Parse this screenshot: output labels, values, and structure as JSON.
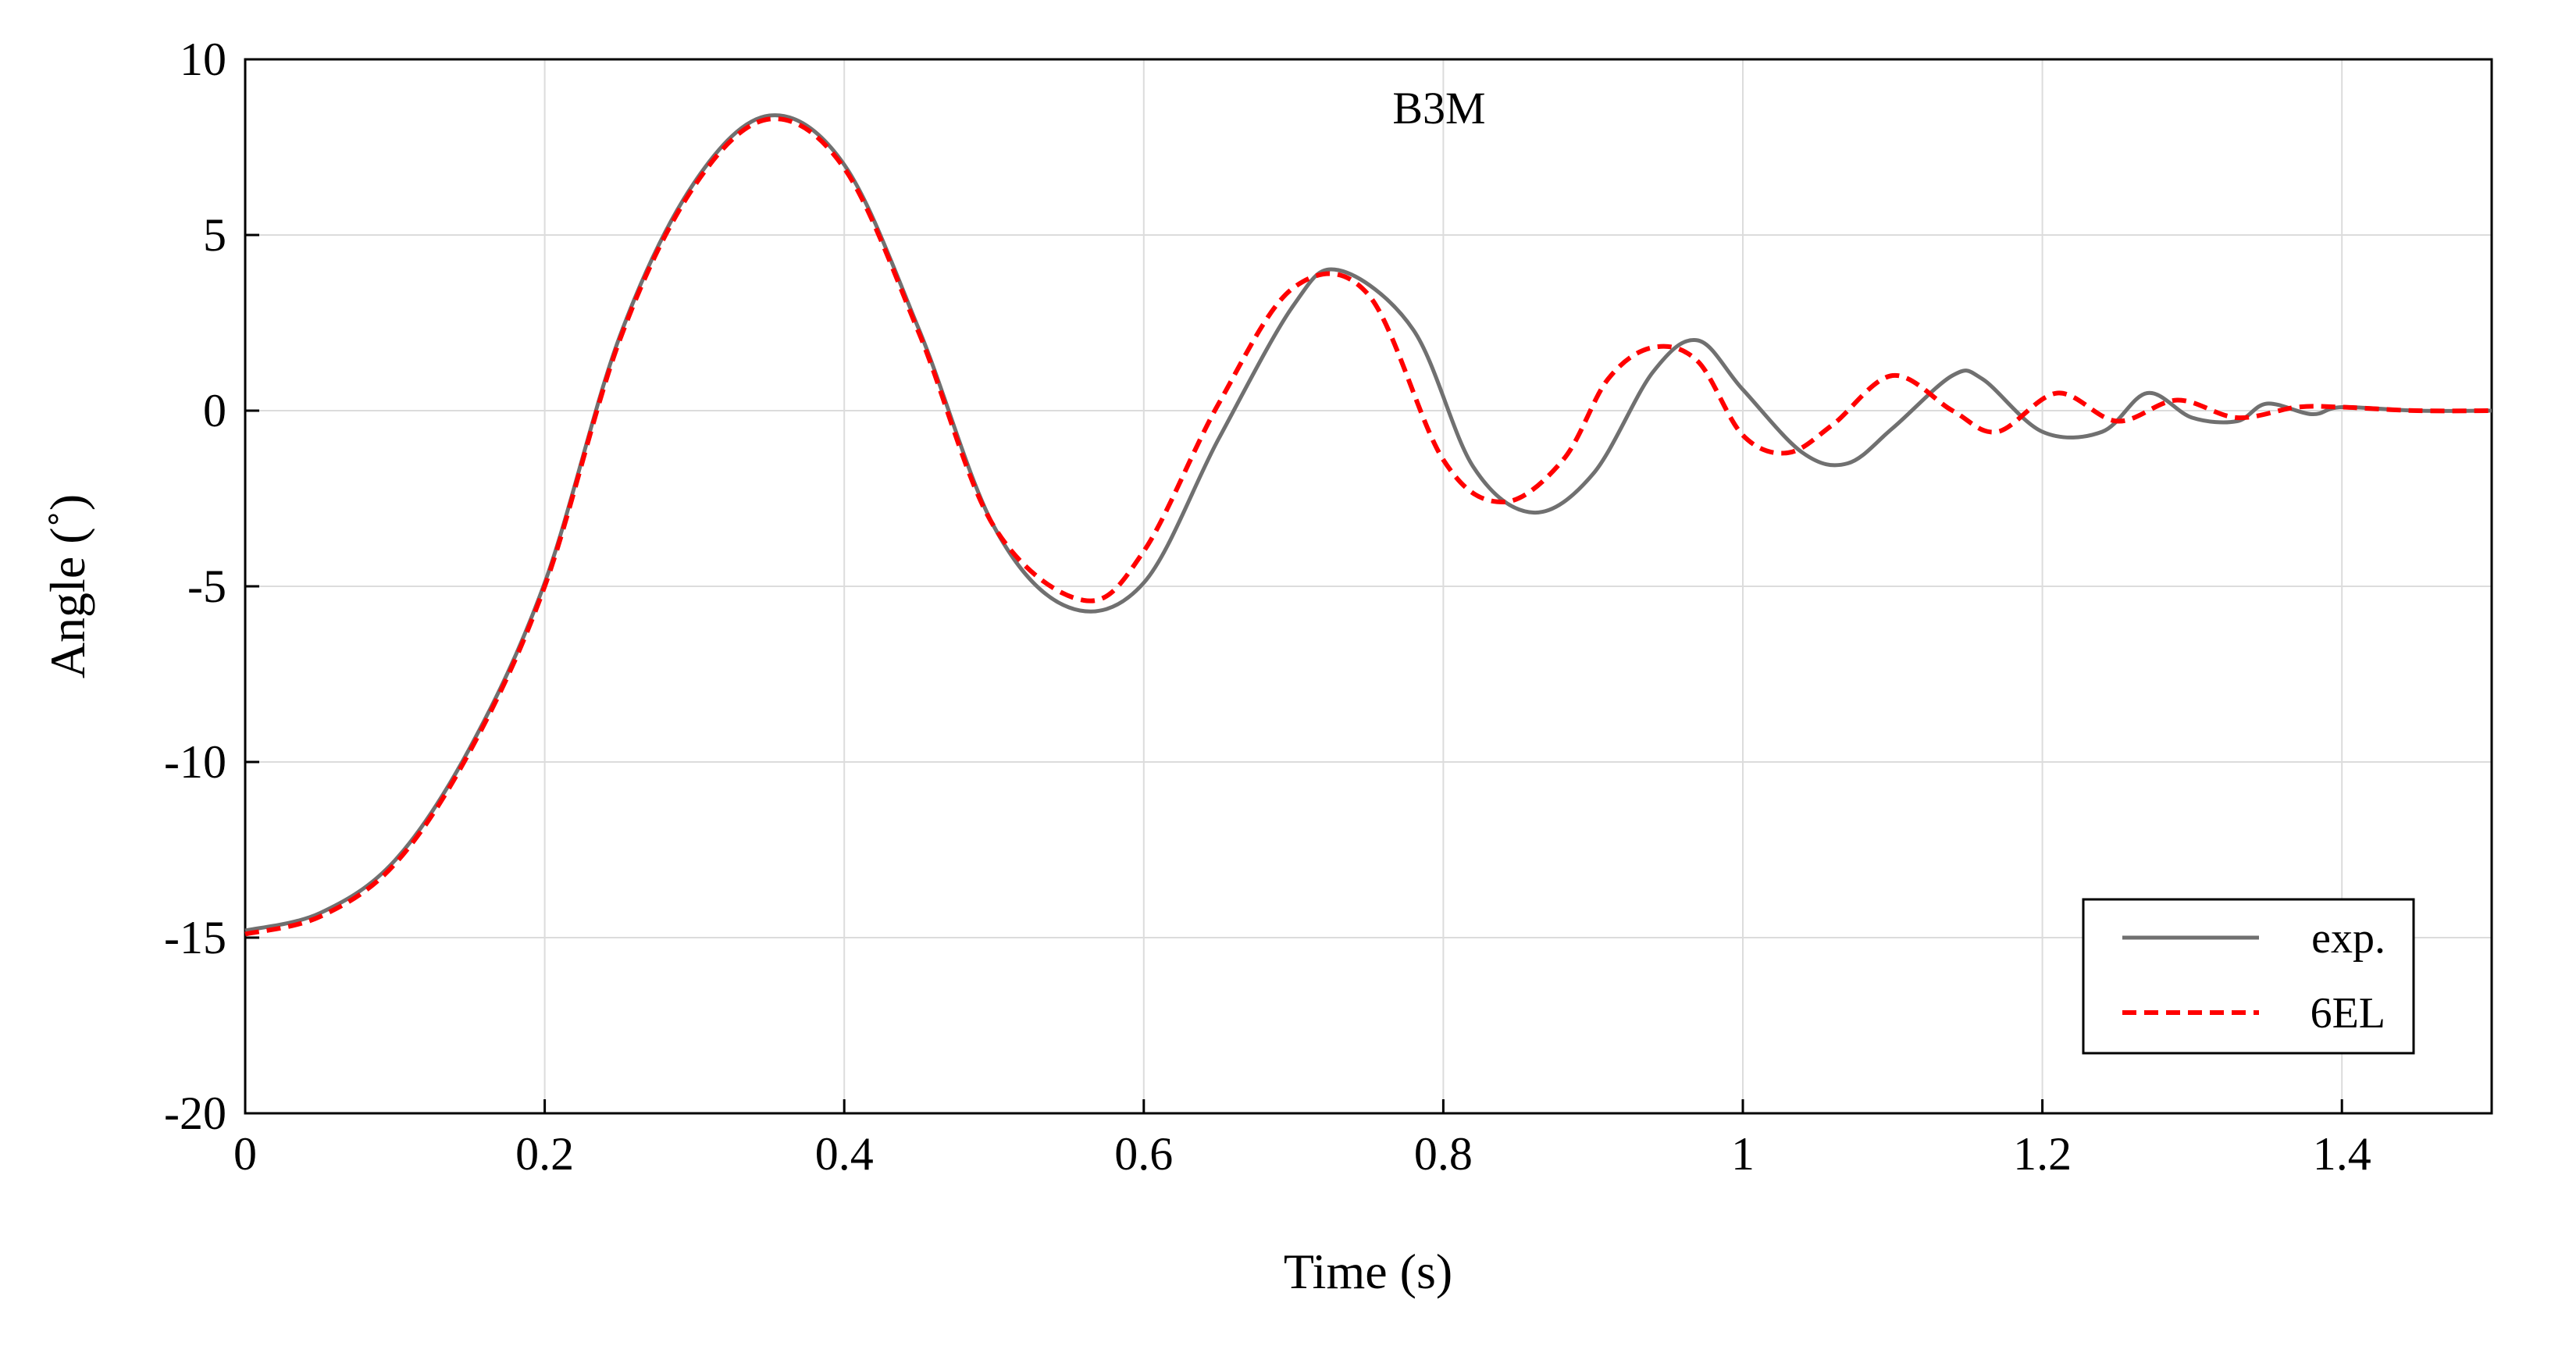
{
  "chart_data": {
    "type": "line",
    "title": "B3M",
    "xlabel": "Time (s)",
    "ylabel": "Angle (˚)",
    "xlim": [
      0,
      1.5
    ],
    "ylim": [
      -20,
      10
    ],
    "x_ticks": [
      0,
      0.2,
      0.4,
      0.6,
      0.8,
      1,
      1.2,
      1.4
    ],
    "x_tick_labels": [
      "0",
      "0.2",
      "0.4",
      "0.6",
      "0.8",
      "1",
      "1.2",
      "1.4"
    ],
    "y_ticks": [
      10,
      5,
      0,
      -5,
      -10,
      -15,
      -20
    ],
    "y_tick_labels": [
      "10",
      "5",
      "0",
      "-5",
      "-10",
      "-15",
      "-20"
    ],
    "grid": true,
    "legend_position": "bottom-right",
    "series": [
      {
        "name": "exp.",
        "color": "#707070",
        "style": "solid",
        "x": [
          0,
          0.05,
          0.1,
          0.15,
          0.2,
          0.25,
          0.3,
          0.35,
          0.4,
          0.45,
          0.5,
          0.55,
          0.6,
          0.65,
          0.7,
          0.73,
          0.78,
          0.82,
          0.86,
          0.9,
          0.94,
          0.97,
          1.0,
          1.04,
          1.07,
          1.1,
          1.14,
          1.16,
          1.2,
          1.24,
          1.27,
          1.3,
          1.33,
          1.35,
          1.38,
          1.4,
          1.45,
          1.5
        ],
        "y": [
          -14.8,
          -14.3,
          -12.8,
          -9.6,
          -4.9,
          2.1,
          6.5,
          8.4,
          7.0,
          2.3,
          -3.3,
          -5.6,
          -4.9,
          -0.8,
          3.0,
          4.0,
          2.3,
          -1.6,
          -2.9,
          -1.8,
          1.1,
          2.0,
          0.6,
          -1.2,
          -1.5,
          -0.5,
          1.0,
          0.9,
          -0.6,
          -0.6,
          0.5,
          -0.2,
          -0.3,
          0.2,
          -0.1,
          0.1,
          0.0,
          0.0
        ]
      },
      {
        "name": "6EL",
        "color": "#ff0000",
        "style": "dashed",
        "x": [
          0,
          0.05,
          0.1,
          0.15,
          0.2,
          0.25,
          0.3,
          0.35,
          0.4,
          0.45,
          0.5,
          0.56,
          0.6,
          0.65,
          0.7,
          0.75,
          0.8,
          0.84,
          0.88,
          0.91,
          0.94,
          0.97,
          1.0,
          1.03,
          1.06,
          1.1,
          1.14,
          1.17,
          1.21,
          1.25,
          1.29,
          1.33,
          1.37,
          1.4,
          1.45,
          1.5
        ],
        "y": [
          -14.9,
          -14.4,
          -12.9,
          -9.7,
          -5.0,
          2.0,
          6.4,
          8.3,
          6.9,
          2.2,
          -3.3,
          -5.4,
          -4.0,
          0.2,
          3.5,
          3.3,
          -1.4,
          -2.6,
          -1.4,
          0.9,
          1.8,
          1.4,
          -0.7,
          -1.2,
          -0.4,
          1.0,
          0.0,
          -0.6,
          0.5,
          -0.3,
          0.3,
          -0.2,
          0.1,
          0.1,
          0.0,
          0.0
        ]
      }
    ]
  }
}
